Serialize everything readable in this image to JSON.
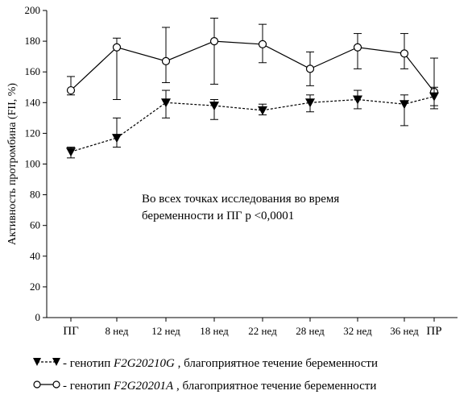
{
  "chart_data": {
    "type": "line",
    "ylabel": "Активность протромбина (FII, %)",
    "yticks": [
      0,
      20,
      40,
      60,
      80,
      100,
      120,
      140,
      160,
      180,
      200
    ],
    "ylim": [
      0,
      200
    ],
    "categories": [
      "ПГ",
      "8 нед",
      "12 нед",
      "18 нед",
      "22 нед",
      "28 нед",
      "32 нед",
      "36 нед",
      "ПР"
    ],
    "series": [
      {
        "name": "генотип F2G20201A , благоприятное течение беременности",
        "marker": "circle-open",
        "line": "solid",
        "values": [
          148,
          176,
          167,
          180,
          178,
          162,
          176,
          172,
          147
        ],
        "err_hi": [
          157,
          182,
          189,
          195,
          191,
          173,
          185,
          185,
          169
        ],
        "err_lo": [
          145,
          142,
          153,
          152,
          166,
          151,
          162,
          162,
          138
        ]
      },
      {
        "name": "генотип F2G20210G , благоприятное течение беременности",
        "marker": "triangle-down-filled",
        "line": "dashed",
        "values": [
          108,
          117,
          140,
          138,
          135,
          140,
          142,
          139,
          144
        ],
        "err_hi": [
          111,
          130,
          148,
          142,
          139,
          145,
          148,
          145,
          150
        ],
        "err_lo": [
          104,
          111,
          130,
          129,
          132,
          134,
          136,
          125,
          136
        ]
      }
    ],
    "annotation_line1": "Во всех точках исследования во время",
    "annotation_line2": "беременности и ПГ р <0,0001"
  },
  "legend": {
    "item1_prefix": "- генотип ",
    "item1_genotype": "F2G20210G",
    "item1_suffix": " , благоприятное течение беременности",
    "item2_prefix": "- генотип ",
    "item2_genotype": "F2G20201A",
    "item2_suffix": " , благоприятное течение беременности"
  }
}
